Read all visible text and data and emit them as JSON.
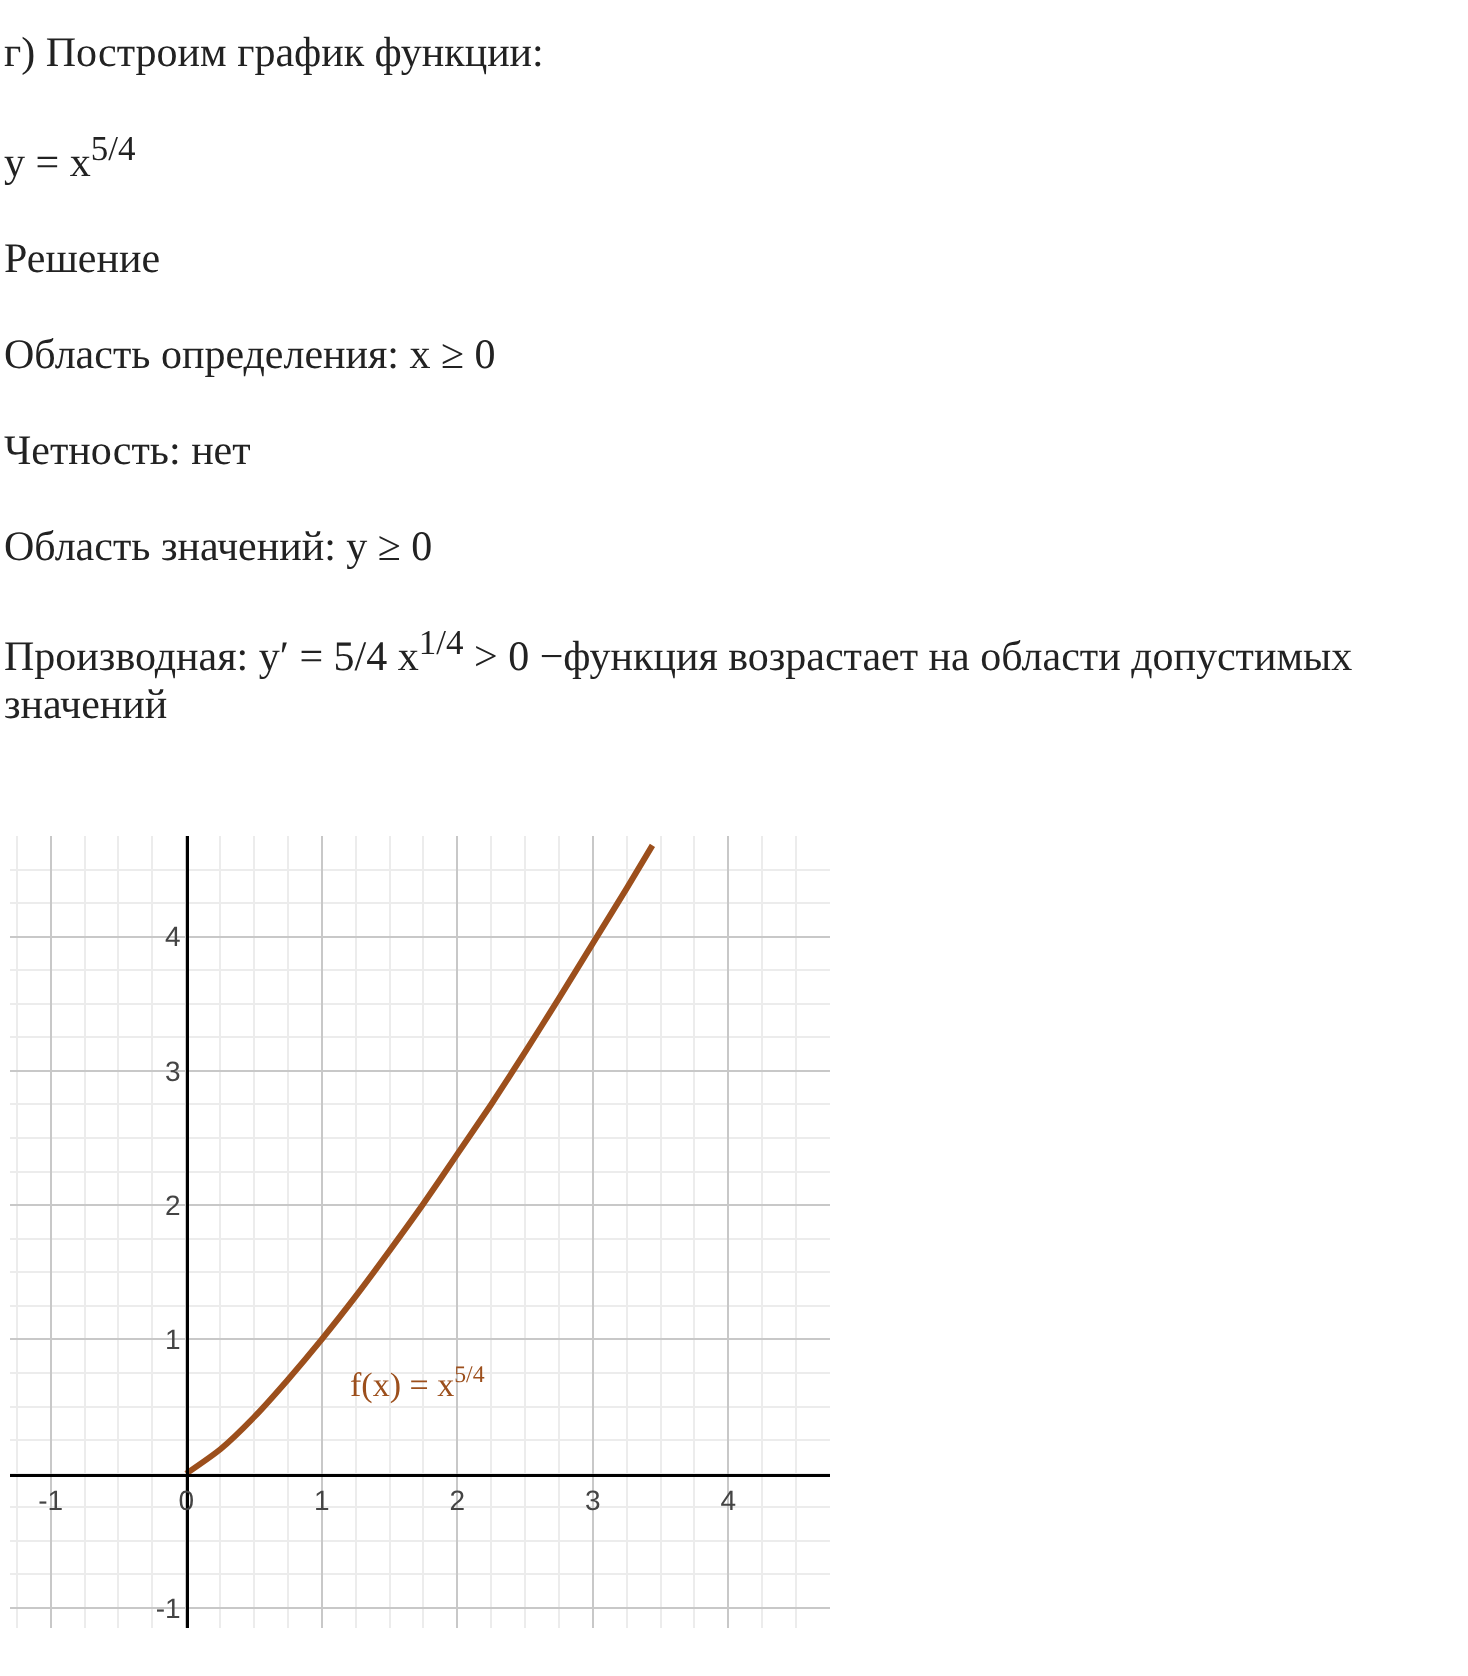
{
  "chart_data": {
    "type": "line",
    "title": "г) Построим график функции:",
    "subtitle": "y = x$^{5/4}$",
    "annotations": [
      "Решение",
      "Область определения: x ≥ 0",
      "Четность: нет",
      "Область значений: y ≥ 0",
      "Производная: y′ = 5/4 x$^{1/4}$ > 0 −функция возрастает на области допустимых значений"
    ],
    "series": [
      {
        "name": "f(x) = x$^{5/4}$",
        "color": "#9c4f1c",
        "x": [
          0,
          0.25,
          0.5,
          0.75,
          1,
          1.25,
          1.5,
          1.75,
          2,
          2.25,
          2.5,
          2.75,
          3,
          3.25,
          3.44
        ],
        "values": [
          0,
          0.18,
          0.42,
          0.7,
          1,
          1.32,
          1.66,
          2.01,
          2.38,
          2.75,
          3.14,
          3.54,
          3.95,
          4.36,
          4.68
        ]
      }
    ],
    "xlim": [
      -1.3,
      4.75
    ],
    "ylim": [
      -1.15,
      4.75
    ],
    "xticks": [
      -1,
      0,
      1,
      2,
      3,
      4
    ],
    "yticks": [
      -1,
      1,
      2,
      3,
      4
    ],
    "grid": true,
    "legend": false,
    "marker": "none",
    "line_style": "solid"
  }
}
